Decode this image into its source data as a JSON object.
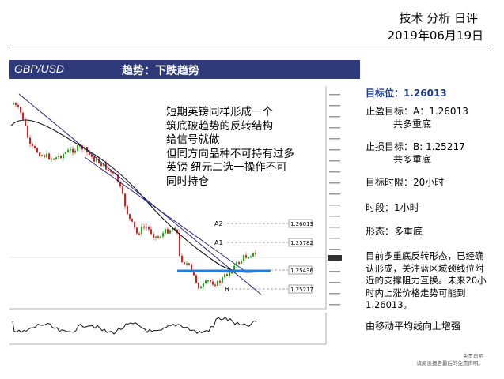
{
  "header": {
    "title": "技术  分析  日评",
    "date": "2019年06月19日"
  },
  "title_bar": {
    "pair": "GBP/USD",
    "trend": "趋势：下跌趋势"
  },
  "chart": {
    "levels": {
      "a2": "1.26013",
      "a1": "1.25782",
      "cur": "1.25436",
      "b": "1.25217"
    },
    "level_labels": {
      "a2": "A2",
      "a1": "A1",
      "b": "B"
    }
  },
  "annotation": {
    "lines": [
      "短期英镑同样形成一个",
      "筑底破趋势的反转结构",
      "给信号就做",
      "但同方向品种不可持有过多",
      "英镑 纽元二选一操作不可",
      "同时持仓"
    ]
  },
  "panel": {
    "target": "目标位：1.26013",
    "tp_label": "止盈目标：A：1.26013",
    "tp_sub": "共多重底",
    "sl_label": "止损目标：B: 1.25217",
    "sl_sub": "共多重底",
    "time_limit": "目标时限：20小时",
    "timeframe": "时段：1小时",
    "pattern": "形态：多重底",
    "description": "目前多重底反转形态，已经确认形成，关注蓝区域颈线位附近的支撑阻力互换。未来20小时内上涨价格走势可能到1.26013。",
    "note": "由移动平均线向上增强"
  },
  "disclaimer": {
    "line1": "免责声明",
    "line2": "请阅读报告最后的免责声明。"
  },
  "colors": {
    "title_bar": "#2f3a7a",
    "candle_up": "#1aa51a",
    "candle_down": "#d42020",
    "neckline": "#1f7fe0",
    "trendline": "#2a2a80"
  }
}
